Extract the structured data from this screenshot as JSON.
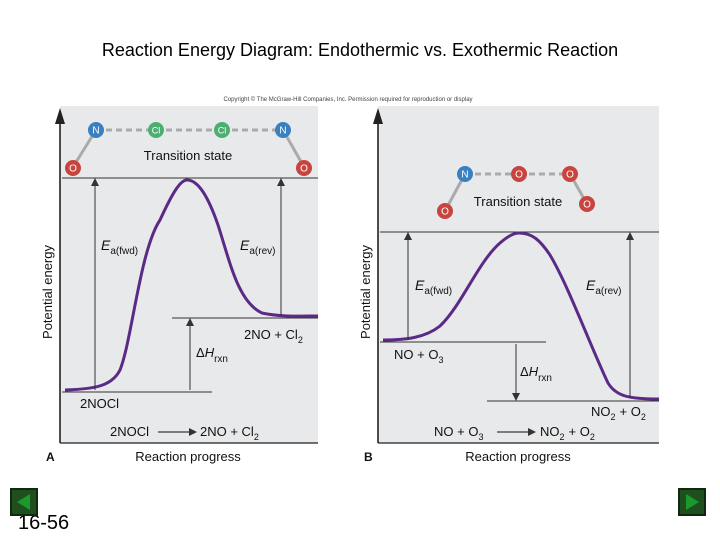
{
  "slide": {
    "title": "Reaction Energy Diagram: Endothermic vs. Exothermic Reaction",
    "copyright": "Copyright © The McGraw-Hill Companies, Inc. Permission required for reproduction or display",
    "number": "16-56"
  },
  "colors": {
    "panel_bg": "#e8e9eb",
    "curve": "#5b2a86",
    "atom_N": "#3a7fbf",
    "atom_Cl": "#4caf72",
    "atom_O": "#c8443e"
  },
  "panels": {
    "a": {
      "label": "A",
      "y_axis": "Potential energy",
      "x_axis": "Reaction progress",
      "transition_state": "Transition state",
      "atoms": [
        "O",
        "N",
        "Cl",
        "Cl",
        "N",
        "O"
      ],
      "ea_fwd_main": "E",
      "ea_fwd_sub": "a(fwd)",
      "ea_rev_main": "E",
      "ea_rev_sub": "a(rev)",
      "dh_delta": "Δ",
      "dh_main": "H",
      "dh_sub": "rxn",
      "reactant": "2NOCl",
      "product_main": "2NO + Cl",
      "product_sub": "2",
      "equation_left": "2NOCl",
      "equation_arrow": "⟶",
      "equation_right_main": "2NO + Cl",
      "equation_right_sub": "2"
    },
    "b": {
      "label": "B",
      "y_axis": "Potential energy",
      "x_axis": "Reaction progress",
      "transition_state": "Transition state",
      "atoms": [
        "O",
        "N",
        "O",
        "O",
        "O"
      ],
      "ea_fwd_main": "E",
      "ea_fwd_sub": "a(fwd)",
      "ea_rev_main": "E",
      "ea_rev_sub": "a(rev)",
      "dh_delta": "Δ",
      "dh_main": "H",
      "dh_sub": "rxn",
      "reactant_main": "NO + O",
      "reactant_sub": "3",
      "product_a_main": "NO",
      "product_a_sub": "2",
      "product_b_main": "+ O",
      "product_b_sub": "2",
      "equation_left_main": "NO + O",
      "equation_left_sub": "3",
      "equation_arrow": "⟶",
      "equation_right_a_main": "NO",
      "equation_right_a_sub": "2",
      "equation_right_b_main": "+ O",
      "equation_right_b_sub": "2"
    }
  }
}
